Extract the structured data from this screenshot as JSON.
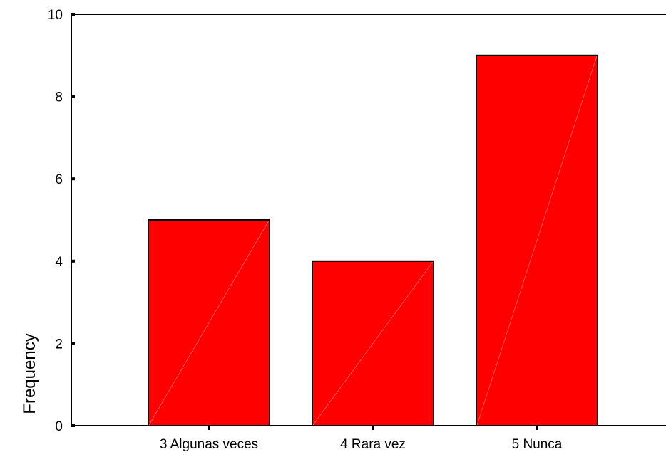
{
  "chart_data": {
    "type": "bar",
    "categories": [
      "3 Algunas veces",
      "4 Rara vez",
      "5 Nunca"
    ],
    "values": [
      5,
      4,
      9
    ],
    "title": "",
    "xlabel": "",
    "ylabel": "Frequency",
    "ylim": [
      0,
      10
    ],
    "yticks": [
      0,
      2,
      4,
      6,
      8,
      10
    ],
    "grid": false,
    "bar_color": "#ff0000",
    "bar_outline_color": "#000000"
  }
}
